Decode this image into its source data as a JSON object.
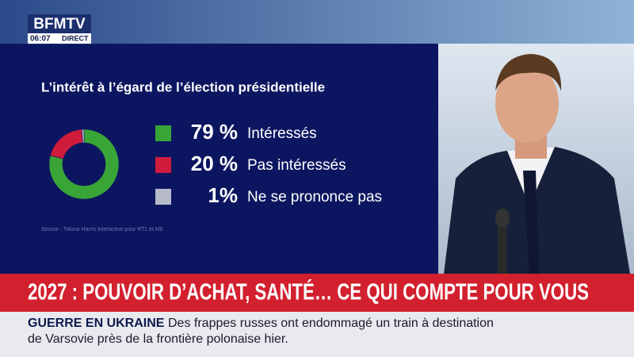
{
  "channel": {
    "logo": "BFMTV",
    "time": "06:07",
    "live": "DIRECT"
  },
  "chart_data": {
    "type": "pie",
    "donut": true,
    "title": "L’intérêt à l’égard de l’élection présidentielle",
    "categories": [
      "Intéressés",
      "Pas intéressés",
      "Ne se prononce pas"
    ],
    "values": [
      79,
      20,
      1
    ],
    "value_labels": [
      "79 %",
      "20 %",
      "1%"
    ],
    "colors": [
      "#3aa537",
      "#cf1b3c",
      "#b8bcc9"
    ],
    "source": "Source : Toluna Harris Interactive pour RTL et M6"
  },
  "headline": "2027 : POUVOIR D’ACHAT, SANTÉ… CE QUI COMPTE POUR VOUS",
  "ticker": {
    "label": "GUERRE EN UKRAINE",
    "lines": [
      "Des frappes russes ont endommagé un train à destination",
      "de Varsovie près de la frontière polonaise hier."
    ]
  }
}
